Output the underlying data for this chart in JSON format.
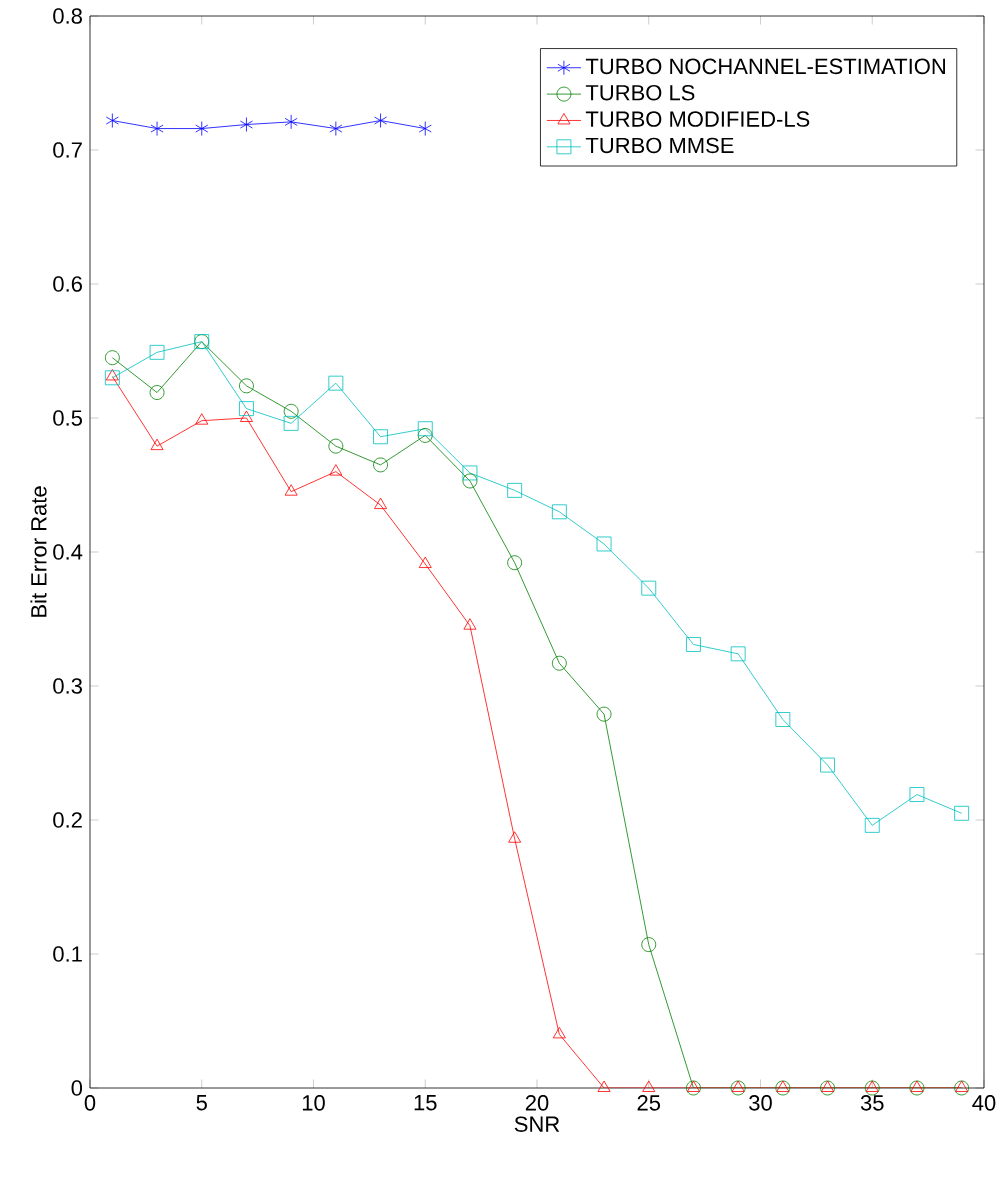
{
  "chart_data": {
    "type": "line",
    "xlabel": "SNR",
    "ylabel": "Bit Error Rate",
    "legend": "top right",
    "grid": false,
    "x": [
      1,
      3,
      5,
      7,
      9,
      11,
      13,
      15,
      17,
      19,
      21,
      23,
      25,
      27,
      29,
      31,
      33,
      35,
      37,
      39
    ],
    "xlim": [
      0,
      40
    ],
    "xticks": [
      0,
      5,
      10,
      15,
      20,
      25,
      30,
      35,
      40
    ],
    "ylim": [
      0,
      0.8
    ],
    "yticks": [
      0,
      0.1,
      0.2,
      0.3,
      0.4,
      0.5,
      0.6,
      0.7,
      0.8
    ],
    "series": [
      {
        "name": "TURBO NOCHANNEL-ESTIMATION",
        "color": "#0000ff",
        "marker": "cross",
        "values": [
          0.722,
          0.716,
          0.716,
          0.719,
          0.721,
          0.716,
          0.722,
          0.716,
          null,
          null,
          null,
          null,
          null,
          null,
          null,
          null,
          null,
          null,
          null,
          null
        ]
      },
      {
        "name": "TURBO LS",
        "color": "#008000",
        "marker": "circle",
        "values": [
          0.545,
          0.519,
          0.557,
          0.524,
          0.505,
          0.479,
          0.465,
          0.487,
          0.453,
          0.392,
          0.317,
          0.279,
          0.107,
          0,
          0,
          0,
          0,
          0,
          0,
          0
        ]
      },
      {
        "name": "TURBO MODIFIED-LS",
        "color": "#ff0000",
        "marker": "triangle",
        "values": [
          0.531,
          0.479,
          0.498,
          0.5,
          0.445,
          0.46,
          0.435,
          0.391,
          0.345,
          0.186,
          0.04,
          0,
          0,
          0,
          0,
          0,
          0,
          0,
          0,
          0
        ]
      },
      {
        "name": "TURBO MMSE",
        "color": "#00bfbf",
        "marker": "square",
        "values": [
          0.53,
          0.549,
          0.557,
          0.507,
          0.496,
          0.526,
          0.486,
          0.492,
          0.459,
          0.446,
          0.43,
          0.406,
          0.373,
          0.331,
          0.324,
          0.275,
          0.241,
          0.196,
          0.219,
          0.205
        ]
      }
    ]
  }
}
